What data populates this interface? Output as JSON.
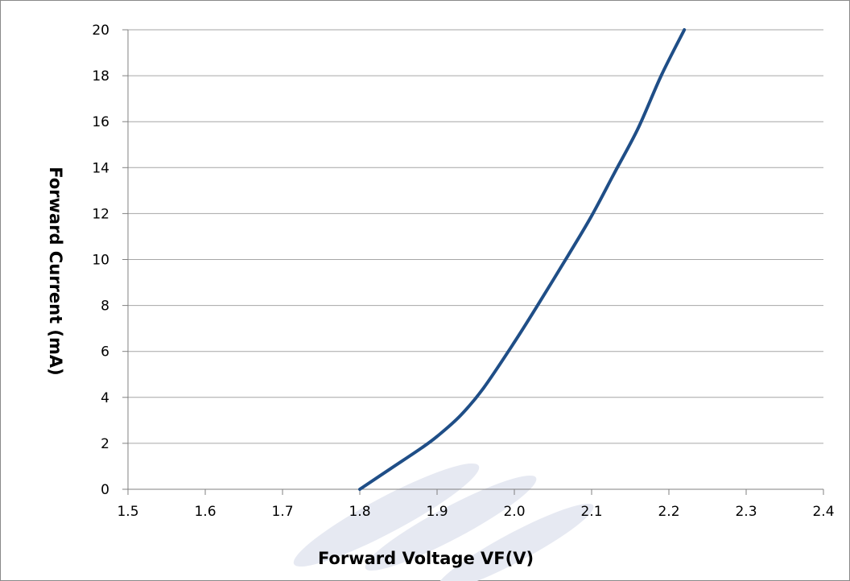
{
  "chart_data": {
    "type": "line",
    "title": "",
    "xlabel": "Forward Voltage  VF(V)",
    "ylabel": "Forward Current  (mA)",
    "xlim": [
      1.5,
      2.4
    ],
    "ylim": [
      0,
      20
    ],
    "xticks": [
      "1.5",
      "1.6",
      "1.7",
      "1.8",
      "1.9",
      "2.0",
      "2.1",
      "2.2",
      "2.3",
      "2.4"
    ],
    "yticks": [
      "0",
      "2",
      "4",
      "6",
      "8",
      "10",
      "12",
      "14",
      "16",
      "18",
      "20"
    ],
    "grid": "horizontal",
    "legend": "none",
    "series": [
      {
        "color": "#1f4e87",
        "x": [
          1.8,
          1.84,
          1.88,
          1.9,
          1.93,
          1.96,
          2.0,
          2.03,
          2.07,
          2.1,
          2.13,
          2.16,
          2.19,
          2.22
        ],
        "y": [
          0,
          0.9,
          1.8,
          2.3,
          3.2,
          4.4,
          6.4,
          8.0,
          10.2,
          11.9,
          13.8,
          15.7,
          18.0,
          20.0
        ]
      }
    ],
    "watermark_color": "#e6e9f2"
  }
}
